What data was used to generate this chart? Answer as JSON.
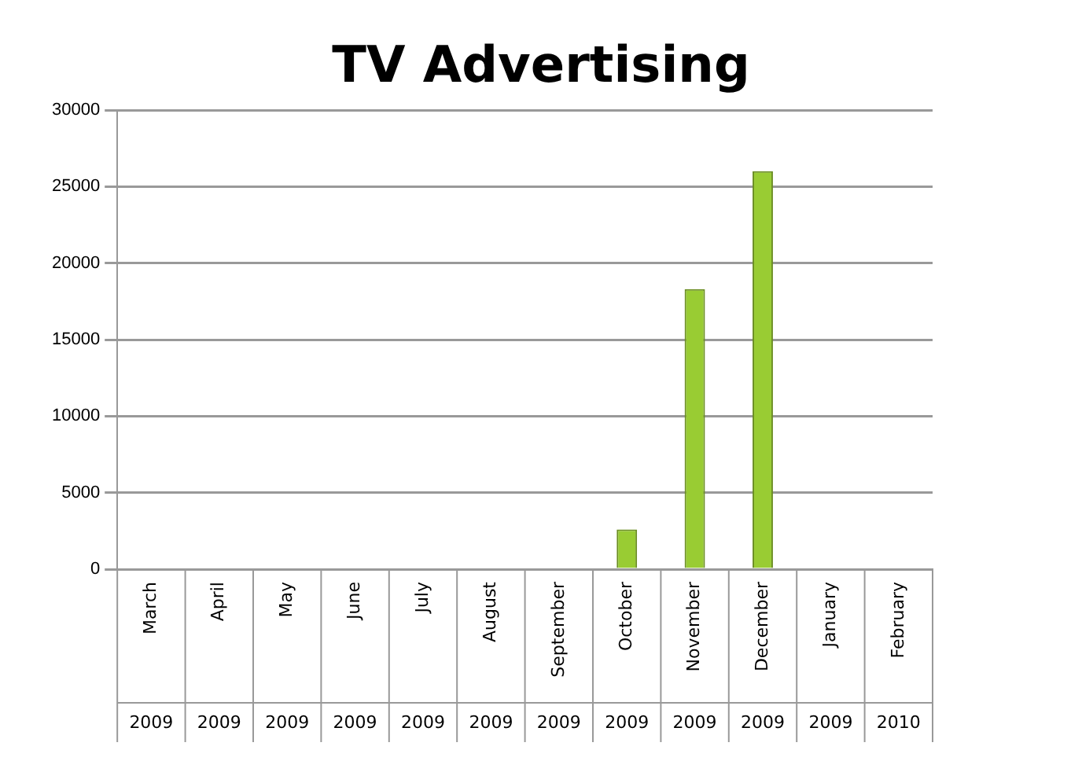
{
  "chart_data": {
    "type": "bar",
    "title": "TV Advertising",
    "categories": [
      "March 2009",
      "April 2009",
      "May 2009",
      "June 2009",
      "July 2009",
      "August 2009",
      "September 2009",
      "October 2009",
      "November 2009",
      "December 2009",
      "January 2009",
      "February 2010"
    ],
    "values": [
      0,
      0,
      0,
      0,
      0,
      0,
      0,
      2600,
      18300,
      26000,
      0,
      0
    ],
    "color": "#99cc33",
    "ylim": [
      0,
      30000
    ],
    "yticks": [
      0,
      5000,
      10000,
      15000,
      20000,
      25000,
      30000
    ],
    "grid": "y",
    "legend": false
  }
}
